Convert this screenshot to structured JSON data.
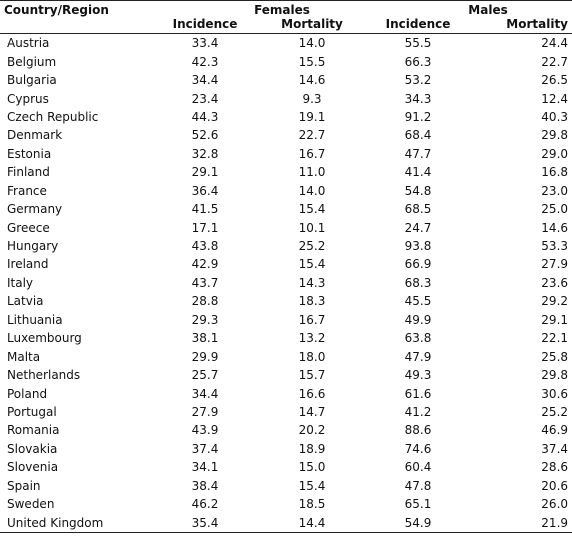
{
  "table": {
    "header": {
      "region_label": "Country/Region",
      "females_label": "Females",
      "males_label": "Males",
      "incidence_label": "Incidence",
      "mortality_label": "Mortality"
    },
    "rows": [
      {
        "country": "Austria",
        "f_inc": "33.4",
        "f_mort": "14.0",
        "m_inc": "55.5",
        "m_mort": "24.4"
      },
      {
        "country": "Belgium",
        "f_inc": "42.3",
        "f_mort": "15.5",
        "m_inc": "66.3",
        "m_mort": "22.7"
      },
      {
        "country": "Bulgaria",
        "f_inc": "34.4",
        "f_mort": "14.6",
        "m_inc": "53.2",
        "m_mort": "26.5"
      },
      {
        "country": "Cyprus",
        "f_inc": "23.4",
        "f_mort": "9.3",
        "m_inc": "34.3",
        "m_mort": "12.4"
      },
      {
        "country": "Czech Republic",
        "f_inc": "44.3",
        "f_mort": "19.1",
        "m_inc": "91.2",
        "m_mort": "40.3"
      },
      {
        "country": "Denmark",
        "f_inc": "52.6",
        "f_mort": "22.7",
        "m_inc": "68.4",
        "m_mort": "29.8"
      },
      {
        "country": "Estonia",
        "f_inc": "32.8",
        "f_mort": "16.7",
        "m_inc": "47.7",
        "m_mort": "29.0"
      },
      {
        "country": "Finland",
        "f_inc": "29.1",
        "f_mort": "11.0",
        "m_inc": "41.4",
        "m_mort": "16.8"
      },
      {
        "country": "France",
        "f_inc": "36.4",
        "f_mort": "14.0",
        "m_inc": "54.8",
        "m_mort": "23.0"
      },
      {
        "country": "Germany",
        "f_inc": "41.5",
        "f_mort": "15.4",
        "m_inc": "68.5",
        "m_mort": "25.0"
      },
      {
        "country": "Greece",
        "f_inc": "17.1",
        "f_mort": "10.1",
        "m_inc": "24.7",
        "m_mort": "14.6"
      },
      {
        "country": "Hungary",
        "f_inc": "43.8",
        "f_mort": "25.2",
        "m_inc": "93.8",
        "m_mort": "53.3"
      },
      {
        "country": "Ireland",
        "f_inc": "42.9",
        "f_mort": "15.4",
        "m_inc": "66.9",
        "m_mort": "27.9"
      },
      {
        "country": "Italy",
        "f_inc": "43.7",
        "f_mort": "14.3",
        "m_inc": "68.3",
        "m_mort": "23.6"
      },
      {
        "country": "Latvia",
        "f_inc": "28.8",
        "f_mort": "18.3",
        "m_inc": "45.5",
        "m_mort": "29.2"
      },
      {
        "country": "Lithuania",
        "f_inc": "29.3",
        "f_mort": "16.7",
        "m_inc": "49.9",
        "m_mort": "29.1"
      },
      {
        "country": "Luxembourg",
        "f_inc": "38.1",
        "f_mort": "13.2",
        "m_inc": "63.8",
        "m_mort": "22.1"
      },
      {
        "country": "Malta",
        "f_inc": "29.9",
        "f_mort": "18.0",
        "m_inc": "47.9",
        "m_mort": "25.8"
      },
      {
        "country": "Netherlands",
        "f_inc": "25.7",
        "f_mort": "15.7",
        "m_inc": "49.3",
        "m_mort": "29.8"
      },
      {
        "country": "Poland",
        "f_inc": "34.4",
        "f_mort": "16.6",
        "m_inc": "61.6",
        "m_mort": "30.6"
      },
      {
        "country": "Portugal",
        "f_inc": "27.9",
        "f_mort": "14.7",
        "m_inc": "41.2",
        "m_mort": "25.2"
      },
      {
        "country": "Romania",
        "f_inc": "43.9",
        "f_mort": "20.2",
        "m_inc": "88.6",
        "m_mort": "46.9"
      },
      {
        "country": "Slovakia",
        "f_inc": "37.4",
        "f_mort": "18.9",
        "m_inc": "74.6",
        "m_mort": "37.4"
      },
      {
        "country": "Slovenia",
        "f_inc": "34.1",
        "f_mort": "15.0",
        "m_inc": "60.4",
        "m_mort": "28.6"
      },
      {
        "country": "Spain",
        "f_inc": "38.4",
        "f_mort": "15.4",
        "m_inc": "47.8",
        "m_mort": "20.6"
      },
      {
        "country": "Sweden",
        "f_inc": "46.2",
        "f_mort": "18.5",
        "m_inc": "65.1",
        "m_mort": "26.0"
      },
      {
        "country": "United Kingdom",
        "f_inc": "35.4",
        "f_mort": "14.4",
        "m_inc": "54.9",
        "m_mort": "21.9"
      }
    ]
  }
}
